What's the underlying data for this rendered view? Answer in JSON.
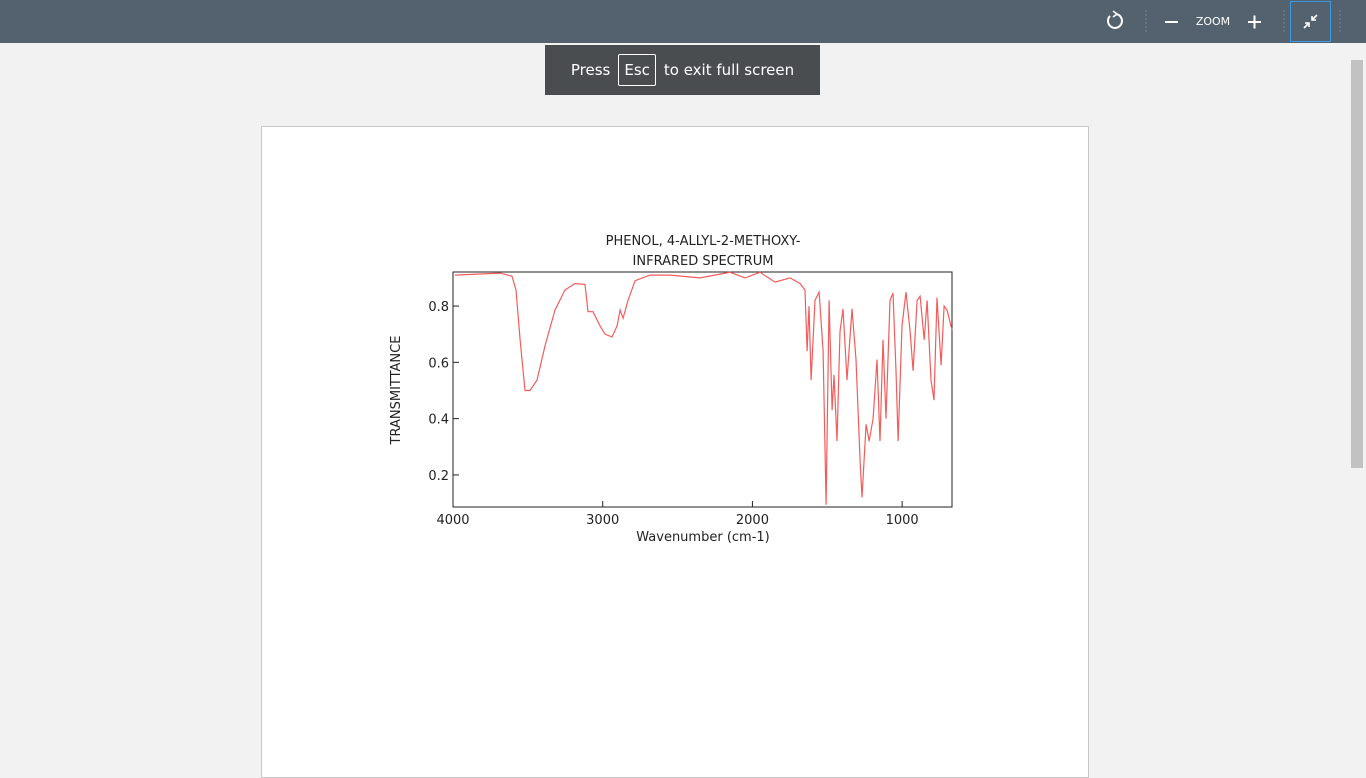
{
  "ui": {
    "zoom_label": "ZOOM",
    "banner": {
      "press": "Press",
      "key": "Esc",
      "rest": "to exit full screen"
    }
  },
  "chart_data": {
    "type": "line",
    "title": "PHENOL, 4-ALLYL-2-METHOXY-",
    "subtitle": "INFRARED SPECTRUM",
    "x_label": "Wavenumber (cm-1)",
    "y_label": "TRANSMITTANCE",
    "color": "#f25c5c",
    "xlim": [
      4000,
      667
    ],
    "ylim": [
      0.086,
      0.921
    ],
    "xticks": [
      4000,
      3000,
      2000,
      1000
    ],
    "yticks": [
      0.2,
      0.4,
      0.6,
      0.8
    ],
    "x": [
      3987,
      3686,
      3606,
      3579,
      3552,
      3519,
      3486,
      3439,
      3385,
      3319,
      3252,
      3185,
      3118,
      3098,
      3065,
      3018,
      2985,
      2938,
      2904,
      2884,
      2864,
      2831,
      2784,
      2684,
      2550,
      2350,
      2150,
      2049,
      1949,
      1849,
      1749,
      1682,
      1649,
      1635,
      1622,
      1608,
      1582,
      1555,
      1528,
      1508,
      1488,
      1468,
      1455,
      1435,
      1415,
      1395,
      1368,
      1335,
      1308,
      1281,
      1268,
      1241,
      1221,
      1194,
      1168,
      1148,
      1128,
      1108,
      1081,
      1061,
      1041,
      1027,
      1001,
      974,
      947,
      927,
      900,
      880,
      853,
      833,
      807,
      787,
      767,
      740,
      720,
      700,
      667
    ],
    "values": [
      0.91,
      0.917,
      0.906,
      0.857,
      0.68,
      0.5,
      0.5,
      0.537,
      0.66,
      0.786,
      0.857,
      0.88,
      0.877,
      0.78,
      0.78,
      0.73,
      0.7,
      0.69,
      0.73,
      0.786,
      0.757,
      0.82,
      0.89,
      0.91,
      0.91,
      0.9,
      0.92,
      0.9,
      0.92,
      0.885,
      0.9,
      0.88,
      0.857,
      0.64,
      0.8,
      0.537,
      0.82,
      0.85,
      0.64,
      0.094,
      0.82,
      0.43,
      0.555,
      0.32,
      0.71,
      0.79,
      0.537,
      0.79,
      0.61,
      0.25,
      0.12,
      0.38,
      0.32,
      0.4,
      0.61,
      0.32,
      0.68,
      0.4,
      0.82,
      0.846,
      0.57,
      0.32,
      0.73,
      0.85,
      0.71,
      0.57,
      0.82,
      0.835,
      0.68,
      0.82,
      0.537,
      0.466,
      0.83,
      0.59,
      0.8,
      0.785,
      0.715
    ]
  }
}
